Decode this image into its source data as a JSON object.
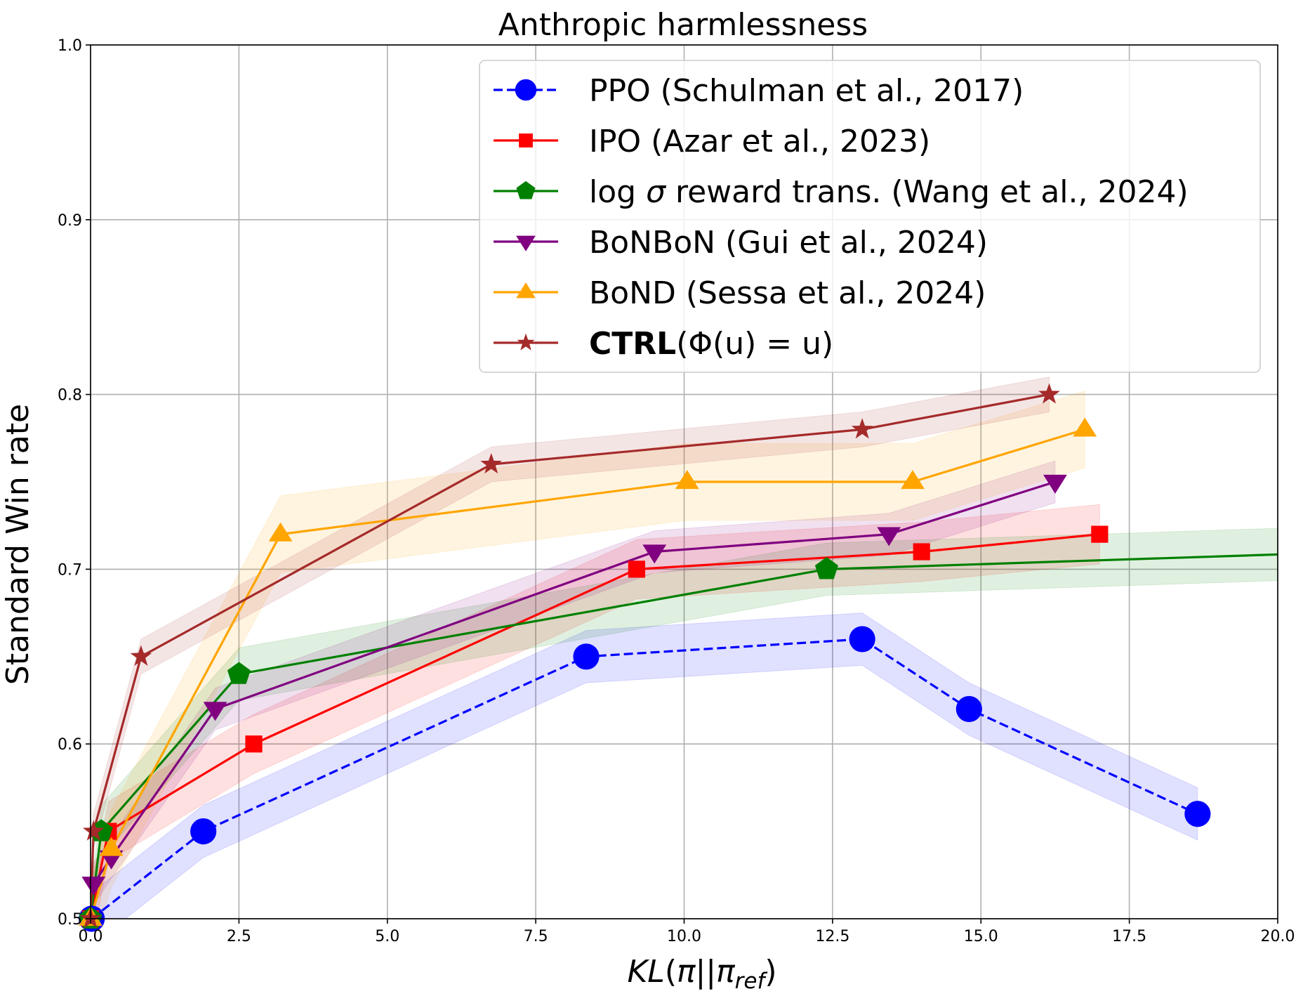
{
  "chart_data": {
    "type": "line",
    "title": "Anthropic harmlessness",
    "ylabel": "Standard Win rate",
    "xlabel": "KL(π||π_ref)",
    "xlim": [
      0,
      20
    ],
    "ylim": [
      0.5,
      1.0
    ],
    "xticks": [
      "0.0",
      "2.5",
      "5.0",
      "7.5",
      "10.0",
      "12.5",
      "15.0",
      "17.5",
      "20.0"
    ],
    "yticks": [
      "0.5",
      "0.6",
      "0.7",
      "0.8",
      "0.9",
      "1.0"
    ],
    "grid": true,
    "legend_position": "top-right",
    "series": [
      {
        "name": "PPO (Schulman et al., 2017)",
        "color": "#0000ff",
        "style": "dashed",
        "marker": "circle",
        "x": [
          0.02,
          1.9,
          8.35,
          13.0,
          14.8,
          18.65
        ],
        "y": [
          0.5,
          0.55,
          0.65,
          0.66,
          0.62,
          0.56
        ],
        "band": 0.015
      },
      {
        "name": "IPO (Azar et al., 2023)",
        "color": "#ff0000",
        "style": "solid",
        "marker": "square",
        "x": [
          0.0,
          0.3,
          2.75,
          9.2,
          14.0,
          17.0
        ],
        "y": [
          0.5,
          0.55,
          0.6,
          0.7,
          0.71,
          0.72
        ],
        "band": 0.017
      },
      {
        "name": "log σ reward trans. (Wang et al., 2024)",
        "name_prefix": "log ",
        "name_sigma": "σ",
        "name_suffix": " reward trans. (Wang et al., 2024)",
        "color": "#008000",
        "style": "solid",
        "marker": "pentagon",
        "x": [
          0.0,
          0.18,
          2.5,
          12.4,
          20.5
        ],
        "y": [
          0.5,
          0.55,
          0.64,
          0.7,
          0.709
        ],
        "band": 0.015
      },
      {
        "name": "BoNBoN (Gui et al., 2024)",
        "color": "#800080",
        "style": "solid",
        "marker": "triangle-down",
        "x": [
          0.05,
          0.35,
          2.1,
          9.5,
          13.45,
          16.25
        ],
        "y": [
          0.52,
          0.535,
          0.62,
          0.71,
          0.72,
          0.75
        ],
        "band": 0.012
      },
      {
        "name": "BoND (Sessa et al., 2024)",
        "color": "#ffa500",
        "style": "solid",
        "marker": "triangle-up",
        "x": [
          0.0,
          0.35,
          3.2,
          10.05,
          13.85,
          16.75
        ],
        "y": [
          0.5,
          0.54,
          0.72,
          0.75,
          0.75,
          0.78
        ],
        "band": 0.022
      },
      {
        "name": "CTRL(Φ(u) = u)",
        "name_bold": "CTRL",
        "name_rest": "(Φ(u) = u)",
        "color": "#a52a2a",
        "style": "solid",
        "marker": "star",
        "x": [
          0.0,
          0.05,
          0.85,
          6.75,
          13.0,
          16.15
        ],
        "y": [
          0.5,
          0.55,
          0.65,
          0.76,
          0.78,
          0.8
        ],
        "band": 0.01
      }
    ]
  }
}
